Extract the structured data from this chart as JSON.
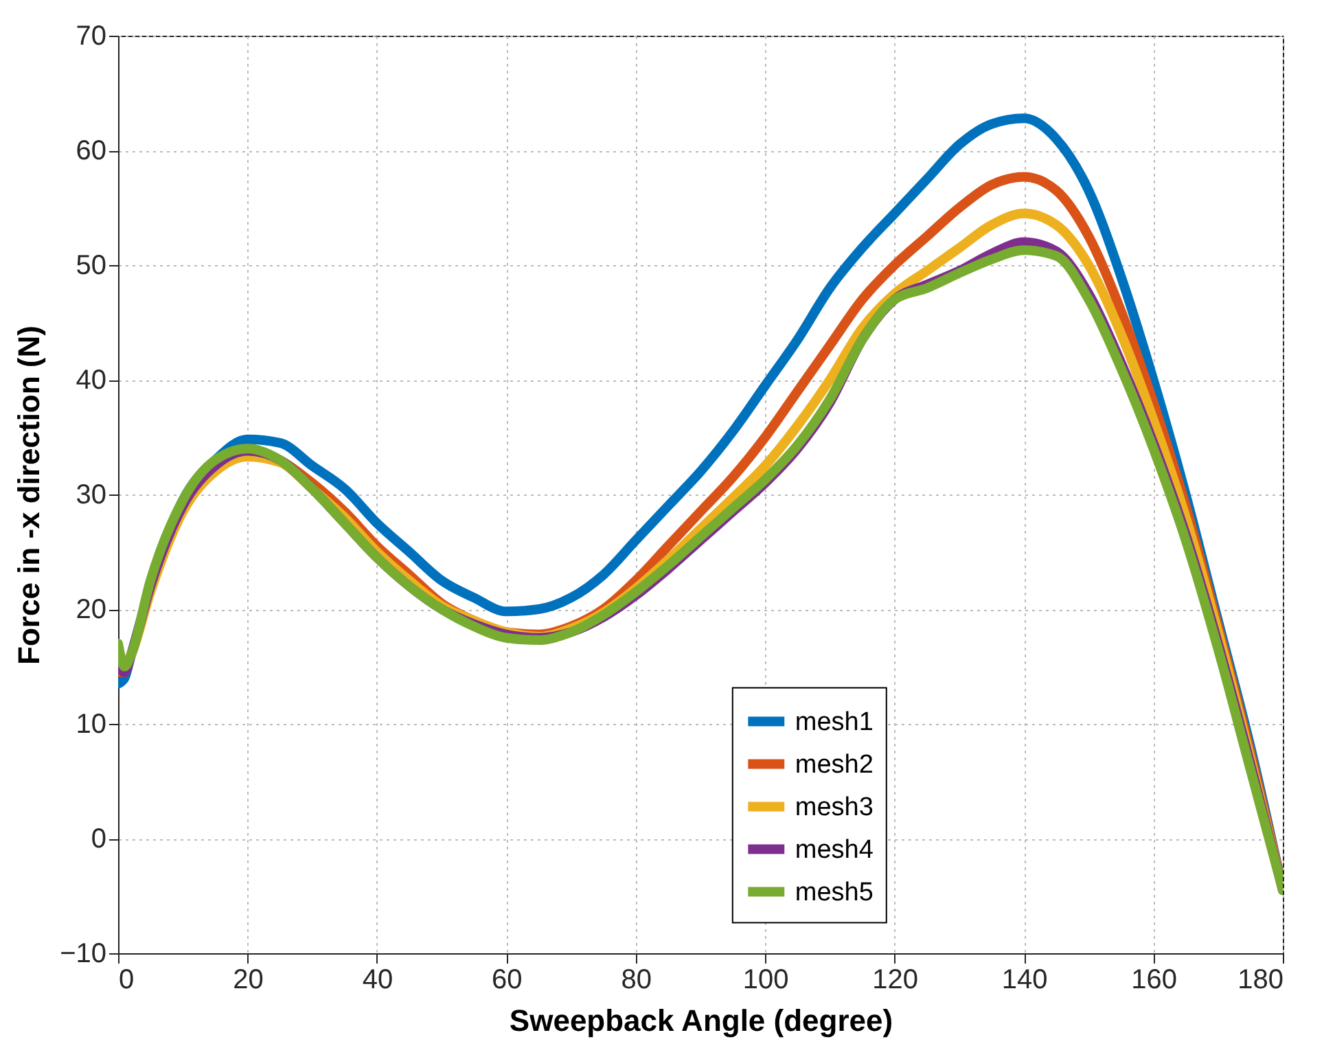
{
  "chart_data": {
    "type": "line",
    "xlabel": "Sweepback Angle (degree)",
    "ylabel": "Force in -x direction (N)",
    "x": [
      0,
      1,
      2,
      5,
      10,
      15,
      20,
      25,
      30,
      35,
      40,
      45,
      50,
      55,
      60,
      65,
      70,
      75,
      80,
      85,
      90,
      95,
      100,
      105,
      110,
      115,
      120,
      125,
      130,
      135,
      140,
      145,
      150,
      155,
      160,
      165,
      170,
      175,
      180
    ],
    "series": [
      {
        "name": "mesh1",
        "color": "#0072bd",
        "values": [
          13.5,
          14,
          16,
          22,
          29.5,
          33,
          34.8,
          34.5,
          32.5,
          30.5,
          27.5,
          25,
          22.5,
          21,
          19.8,
          20,
          21,
          23,
          26,
          29,
          32,
          35.5,
          39.5,
          43.5,
          48,
          51.5,
          54.5,
          57.5,
          60.5,
          62.3,
          62.8,
          61,
          56.5,
          49,
          40,
          30,
          19,
          8,
          -4.5
        ]
      },
      {
        "name": "mesh2",
        "color": "#d95319",
        "values": [
          14.5,
          14.5,
          16,
          22,
          29,
          32.5,
          33.8,
          33,
          31,
          28.5,
          25.5,
          23,
          20.5,
          19,
          18,
          17.8,
          18.5,
          20,
          22.5,
          25.5,
          28.5,
          31.5,
          35,
          39,
          43,
          47,
          50,
          52.5,
          55,
          57,
          57.7,
          56.5,
          52.5,
          46,
          38,
          29,
          18.5,
          7.5,
          -4.5
        ]
      },
      {
        "name": "mesh3",
        "color": "#edb120",
        "values": [
          16,
          15,
          16,
          21.5,
          28.5,
          32,
          33.3,
          32.8,
          30.5,
          28,
          25,
          22.5,
          20.3,
          19,
          18,
          17.6,
          18.3,
          19.7,
          21.8,
          24.3,
          27,
          29.7,
          32.5,
          36,
          40,
          44.5,
          47.5,
          49.5,
          51.5,
          53.5,
          54.5,
          53.5,
          50,
          44,
          36.5,
          28,
          18,
          7,
          -4.5
        ]
      },
      {
        "name": "mesh4",
        "color": "#7e2f8e",
        "values": [
          15,
          14.5,
          16,
          22,
          29,
          32.5,
          33.8,
          33,
          30.5,
          27.5,
          24.5,
          22,
          20,
          18.7,
          17.8,
          17.5,
          18,
          19.3,
          21.2,
          23.5,
          26,
          28.5,
          31,
          34,
          38,
          43.5,
          47,
          48.3,
          49.5,
          51,
          52,
          51.2,
          47.5,
          41.5,
          34.5,
          26.5,
          17,
          6.5,
          -4.5
        ]
      },
      {
        "name": "mesh5",
        "color": "#77ac30",
        "values": [
          17,
          15,
          16,
          22.5,
          29.5,
          33,
          34,
          33,
          30.5,
          27.5,
          24.5,
          22,
          20,
          18.5,
          17.5,
          17.3,
          18,
          19.5,
          21.5,
          23.8,
          26.3,
          28.8,
          31.3,
          34.3,
          38.3,
          43.5,
          47,
          48,
          49.3,
          50.5,
          51.3,
          50.8,
          47,
          41,
          34,
          26,
          16.5,
          6,
          -4.5
        ]
      }
    ],
    "xlim": [
      0,
      180
    ],
    "xticks": [
      0,
      20,
      40,
      60,
      80,
      100,
      120,
      140,
      160,
      180
    ],
    "ylim": [
      -10,
      70
    ],
    "yticks": [
      -10,
      0,
      10,
      20,
      30,
      40,
      50,
      60,
      70
    ],
    "grid": true,
    "legend": "bottom right",
    "line_style": "solid"
  }
}
